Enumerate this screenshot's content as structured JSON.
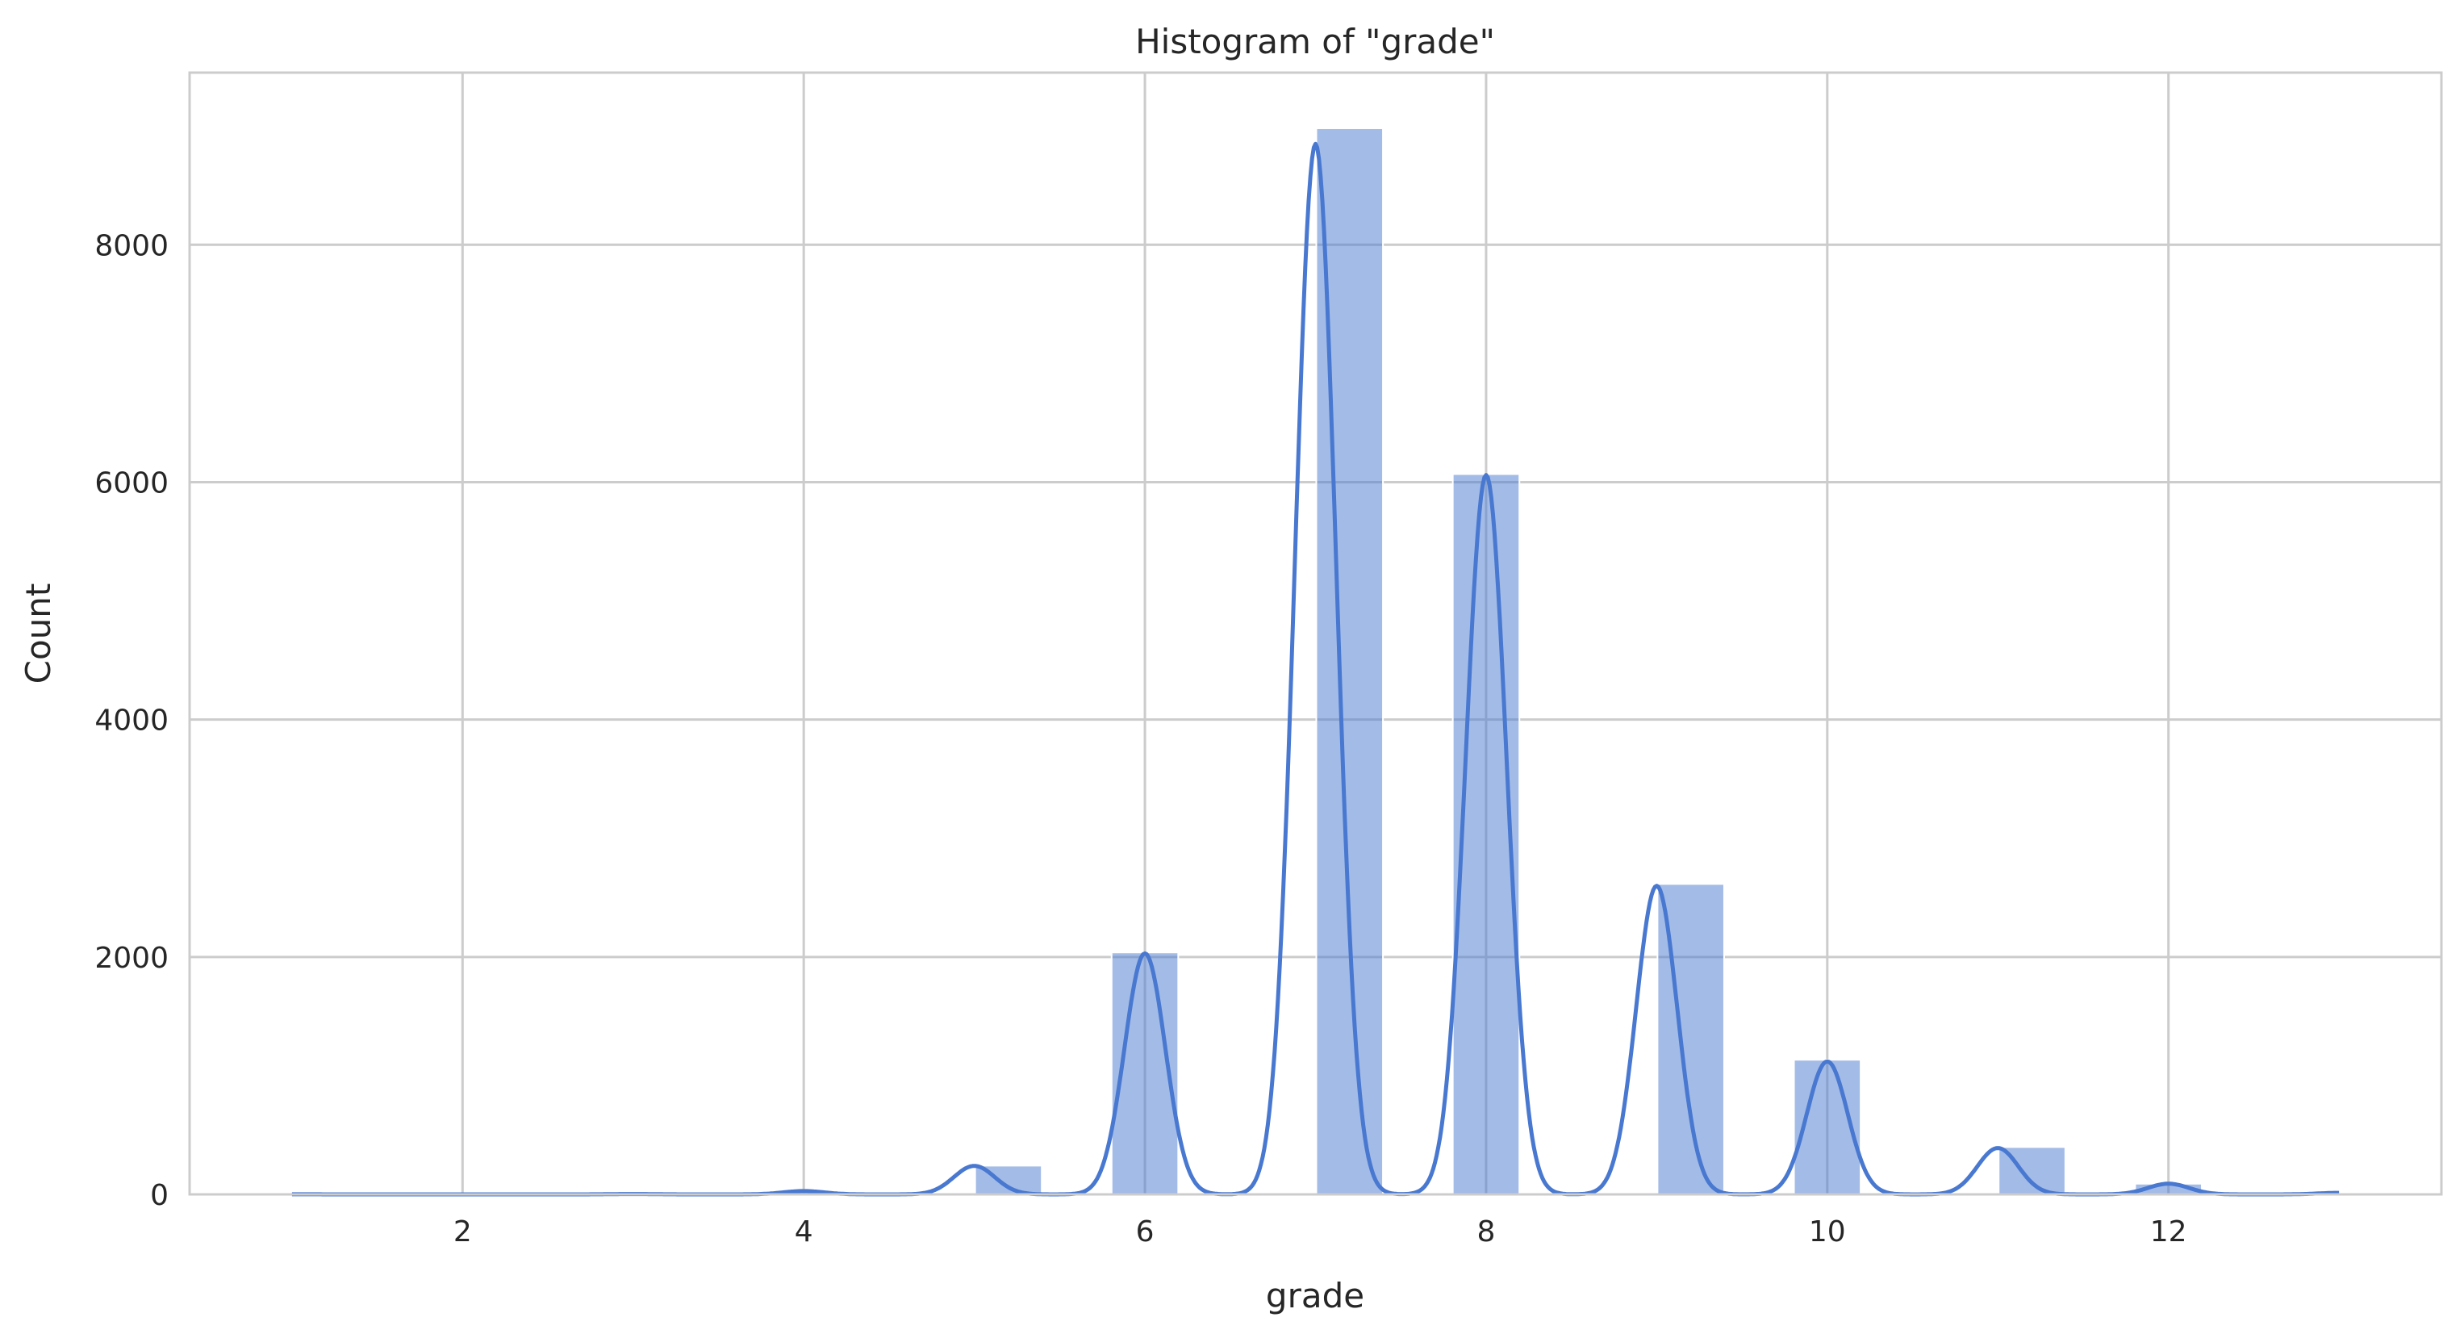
{
  "chart_data": {
    "type": "bar",
    "title": "Histogram of \"grade\"",
    "xlabel": "grade",
    "ylabel": "Count",
    "xlim": [
      0.4,
      13.6
    ],
    "ylim": [
      0,
      9450
    ],
    "xticks": [
      2,
      4,
      6,
      8,
      10,
      12
    ],
    "yticks": [
      0,
      2000,
      4000,
      6000,
      8000
    ],
    "grid": true,
    "bar_color": "#4878d0",
    "kde_color": "#4878d0",
    "bins": [
      {
        "start": 1.0,
        "end": 1.4,
        "count": 1
      },
      {
        "start": 1.4,
        "end": 1.8,
        "count": 0
      },
      {
        "start": 1.8,
        "end": 2.2,
        "count": 0
      },
      {
        "start": 2.2,
        "end": 2.6,
        "count": 0
      },
      {
        "start": 2.6,
        "end": 3.0,
        "count": 0
      },
      {
        "start": 3.0,
        "end": 3.4,
        "count": 3
      },
      {
        "start": 3.4,
        "end": 3.8,
        "count": 0
      },
      {
        "start": 3.8,
        "end": 4.2,
        "count": 29
      },
      {
        "start": 4.2,
        "end": 4.6,
        "count": 0
      },
      {
        "start": 4.6,
        "end": 5.0,
        "count": 0
      },
      {
        "start": 5.0,
        "end": 5.4,
        "count": 242
      },
      {
        "start": 5.4,
        "end": 5.8,
        "count": 0
      },
      {
        "start": 5.8,
        "end": 6.2,
        "count": 2038
      },
      {
        "start": 6.2,
        "end": 6.6,
        "count": 0
      },
      {
        "start": 6.6,
        "end": 7.0,
        "count": 0
      },
      {
        "start": 7.0,
        "end": 7.4,
        "count": 8981
      },
      {
        "start": 7.4,
        "end": 7.8,
        "count": 0
      },
      {
        "start": 7.8,
        "end": 8.2,
        "count": 6068
      },
      {
        "start": 8.2,
        "end": 8.6,
        "count": 0
      },
      {
        "start": 8.6,
        "end": 9.0,
        "count": 0
      },
      {
        "start": 9.0,
        "end": 9.4,
        "count": 2615
      },
      {
        "start": 9.4,
        "end": 9.8,
        "count": 0
      },
      {
        "start": 9.8,
        "end": 10.2,
        "count": 1134
      },
      {
        "start": 10.2,
        "end": 10.6,
        "count": 0
      },
      {
        "start": 10.6,
        "end": 11.0,
        "count": 0
      },
      {
        "start": 11.0,
        "end": 11.4,
        "count": 399
      },
      {
        "start": 11.4,
        "end": 11.8,
        "count": 0
      },
      {
        "start": 11.8,
        "end": 12.2,
        "count": 90
      },
      {
        "start": 12.2,
        "end": 12.6,
        "count": 0
      },
      {
        "start": 12.6,
        "end": 13.0,
        "count": 13
      }
    ],
    "kde_peaks": [
      {
        "x": 1.0,
        "y": 1
      },
      {
        "x": 3.0,
        "y": 3
      },
      {
        "x": 4.0,
        "y": 28
      },
      {
        "x": 5.0,
        "y": 240
      },
      {
        "x": 6.0,
        "y": 2030
      },
      {
        "x": 7.0,
        "y": 8850
      },
      {
        "x": 8.0,
        "y": 6060
      },
      {
        "x": 9.0,
        "y": 2600
      },
      {
        "x": 10.0,
        "y": 1120
      },
      {
        "x": 11.0,
        "y": 390
      },
      {
        "x": 12.0,
        "y": 90
      },
      {
        "x": 13.0,
        "y": 13
      }
    ]
  }
}
